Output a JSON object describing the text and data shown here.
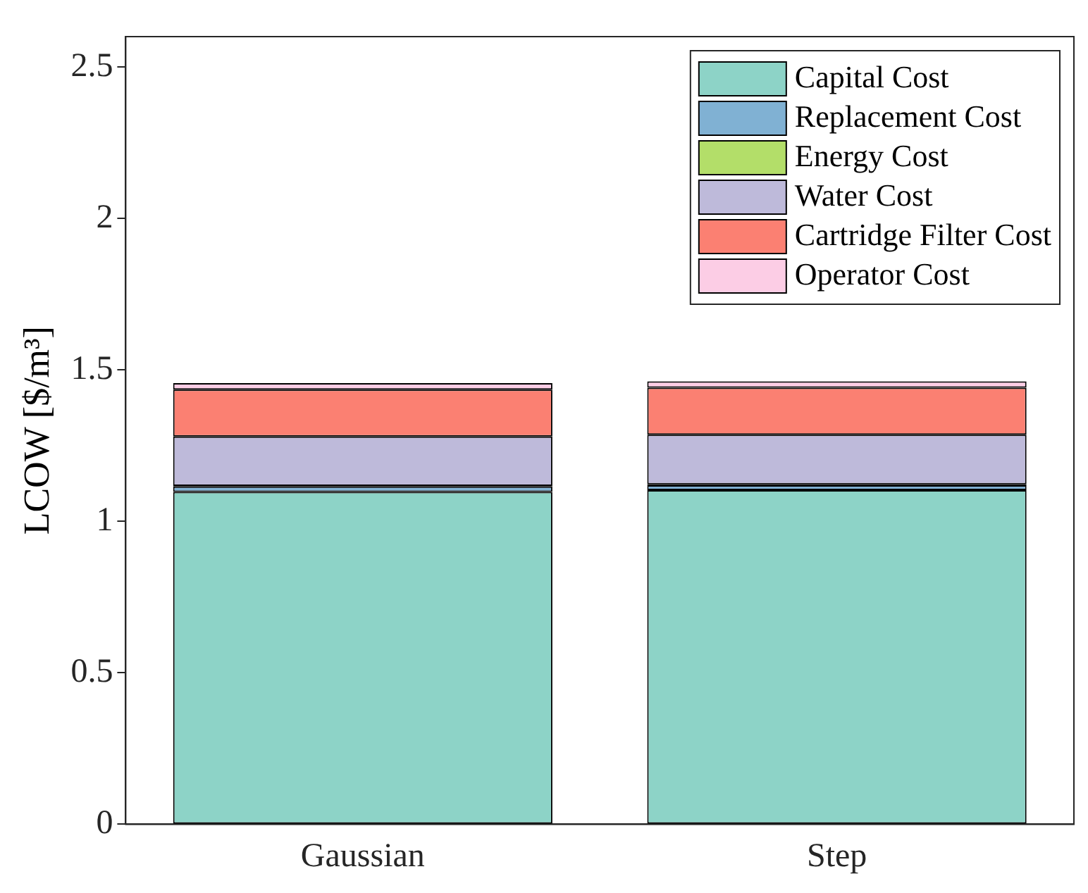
{
  "chart_data": {
    "type": "bar",
    "stacked": true,
    "ylabel": "LCOW [$/m³]",
    "categories": [
      "Gaussian",
      "Step"
    ],
    "series": [
      {
        "name": "Capital Cost",
        "color": "#8dd3c7",
        "values": [
          1.097,
          1.103
        ]
      },
      {
        "name": "Replacement Cost",
        "color": "#80b1d3",
        "values": [
          0.018,
          0.016
        ]
      },
      {
        "name": "Energy Cost",
        "color": "#b3de69",
        "values": [
          0.002,
          0.003
        ]
      },
      {
        "name": "Water Cost",
        "color": "#bebada",
        "values": [
          0.163,
          0.164
        ]
      },
      {
        "name": "Cartridge Filter Cost",
        "color": "#fb8072",
        "values": [
          0.155,
          0.155
        ]
      },
      {
        "name": "Operator Cost",
        "color": "#fccde5",
        "values": [
          0.021,
          0.021
        ]
      }
    ],
    "ylim": [
      0,
      2.6
    ],
    "yticks": [
      0,
      0.5,
      1,
      1.5,
      2,
      2.5
    ],
    "grid": false,
    "legend": "top right"
  }
}
